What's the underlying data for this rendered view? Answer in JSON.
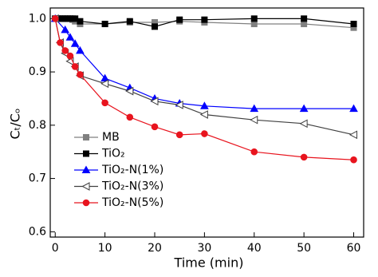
{
  "chart_data": {
    "type": "line",
    "x_label": "Time (min)",
    "y_label": "Cₜ/Cₒ",
    "xlim": [
      -1,
      62
    ],
    "xticks": [
      0,
      10,
      20,
      30,
      40,
      50,
      60
    ],
    "ylim": [
      0.59,
      1.02
    ],
    "yticks": [
      0.6,
      0.7,
      0.8,
      0.9,
      {
        "value": 1,
        "label": "1.0"
      }
    ],
    "legend": "lower-left",
    "series": [
      {
        "name": "MB",
        "color": "#808080",
        "marker": "square",
        "filled": true,
        "x": [
          0,
          0.5,
          1,
          1.5,
          2,
          2.5,
          3,
          3.5,
          4,
          5,
          10,
          15,
          20,
          25,
          30,
          40,
          50,
          60
        ],
        "values": [
          1.0,
          1.0,
          1.0,
          1.0,
          1.0,
          1.0,
          1.0,
          0.998,
          0.995,
          0.99,
          0.99,
          0.993,
          0.993,
          0.995,
          0.993,
          0.99,
          0.99,
          0.983
        ]
      },
      {
        "name": "TiO₂",
        "color": "#000000",
        "marker": "square",
        "filled": true,
        "x": [
          0,
          0.5,
          1,
          1.5,
          2,
          2.5,
          3,
          3.5,
          4,
          5,
          10,
          15,
          20,
          25,
          30,
          40,
          50,
          60
        ],
        "values": [
          1.0,
          1.0,
          1.0,
          1.0,
          1.0,
          1.0,
          1.0,
          1.0,
          1.0,
          0.995,
          0.99,
          0.995,
          0.985,
          0.998,
          0.998,
          1.0,
          1.0,
          0.99
        ]
      },
      {
        "name": "TiO₂-N(1%)",
        "color": "#0000ff",
        "marker": "triangle-up",
        "filled": true,
        "x": [
          0,
          2,
          3,
          4,
          5,
          10,
          15,
          20,
          25,
          30,
          40,
          50,
          60
        ],
        "values": [
          1.0,
          0.979,
          0.965,
          0.953,
          0.94,
          0.888,
          0.87,
          0.85,
          0.841,
          0.836,
          0.831,
          0.831,
          0.831
        ]
      },
      {
        "name": "TiO₂-N(3%)",
        "color": "#404040",
        "marker": "triangle-left",
        "filled": false,
        "x": [
          0,
          1,
          2,
          3,
          4,
          5,
          10,
          15,
          20,
          25,
          30,
          40,
          50,
          60
        ],
        "values": [
          1.0,
          0.955,
          0.935,
          0.92,
          0.91,
          0.893,
          0.878,
          0.864,
          0.845,
          0.838,
          0.82,
          0.81,
          0.803,
          0.782
        ]
      },
      {
        "name": "TiO₂-N(5%)",
        "color": "#e8141e",
        "marker": "circle",
        "filled": true,
        "x": [
          0,
          1,
          2,
          3,
          4,
          5,
          10,
          15,
          20,
          25,
          30,
          40,
          50,
          60
        ],
        "values": [
          1.0,
          0.955,
          0.94,
          0.93,
          0.91,
          0.895,
          0.842,
          0.815,
          0.797,
          0.782,
          0.784,
          0.75,
          0.74,
          0.735
        ]
      }
    ]
  }
}
